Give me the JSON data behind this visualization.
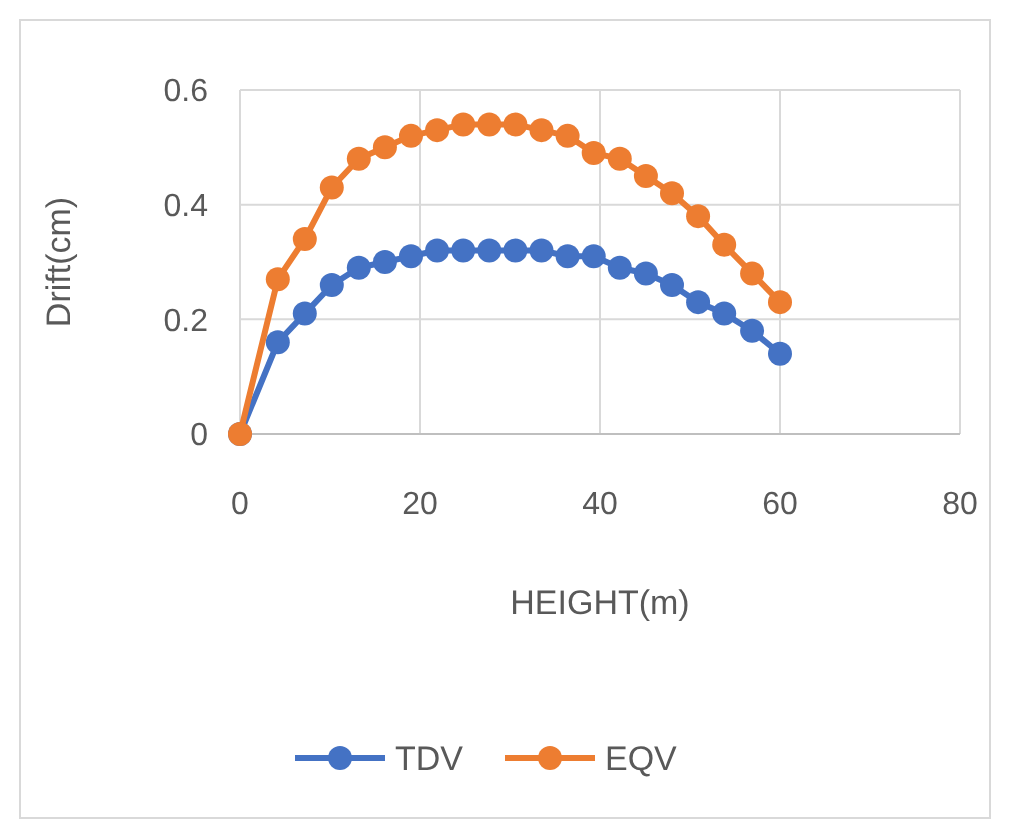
{
  "chart_data": {
    "type": "line",
    "xlabel": "HEIGHT(m)",
    "ylabel": "Drift(cm)",
    "x": [
      0,
      4.2,
      7.2,
      10.2,
      13.2,
      16.1,
      19,
      21.9,
      24.8,
      27.7,
      30.6,
      33.5,
      36.4,
      39.3,
      42.2,
      45.1,
      48,
      50.9,
      53.8,
      56.9,
      60
    ],
    "series": [
      {
        "name": "TDV",
        "color": "#4472c4",
        "values": [
          0,
          0.16,
          0.21,
          0.26,
          0.29,
          0.3,
          0.31,
          0.32,
          0.32,
          0.32,
          0.32,
          0.32,
          0.31,
          0.31,
          0.29,
          0.28,
          0.26,
          0.23,
          0.21,
          0.18,
          0.14
        ]
      },
      {
        "name": "EQV",
        "color": "#ed7d31",
        "values": [
          0,
          0.27,
          0.34,
          0.43,
          0.48,
          0.5,
          0.52,
          0.53,
          0.54,
          0.54,
          0.54,
          0.53,
          0.52,
          0.49,
          0.48,
          0.45,
          0.42,
          0.38,
          0.33,
          0.28,
          0.23
        ]
      }
    ],
    "xlim": [
      0,
      80
    ],
    "xticks": [
      0,
      20,
      40,
      60,
      80
    ],
    "ylim": [
      0,
      0.6
    ],
    "yticks": [
      0,
      0.2,
      0.4,
      0.6
    ],
    "grid": true,
    "legend": "bottom",
    "marker": "circle",
    "line_style": "solid"
  }
}
